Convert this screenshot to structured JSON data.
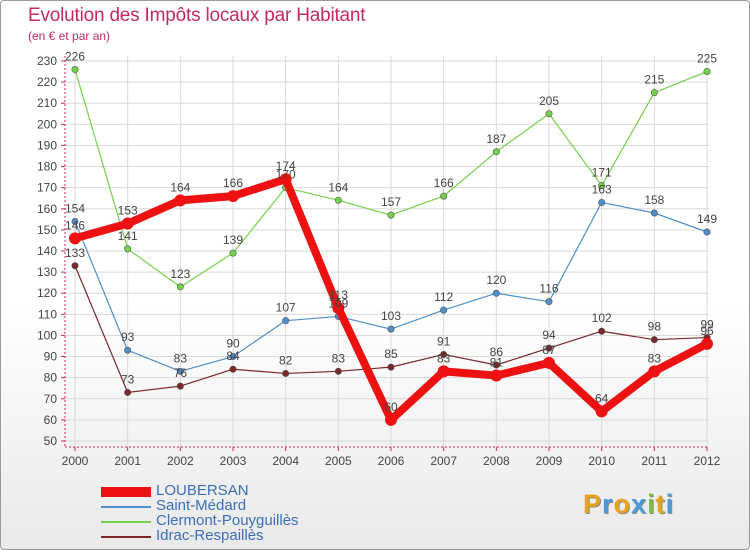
{
  "colors": {
    "title": "#c42b5e",
    "axis": "#c42b5e",
    "grid": "#d9d9d9",
    "label": "#444444",
    "legend_text": "#3b6fb6",
    "logo": [
      "#e9a21c",
      "#4a9ad8",
      "#e9a21c",
      "#4a9ad8",
      "#7cc13b",
      "#e9a21c",
      "#4a9ad8"
    ]
  },
  "logo": {
    "text": "Proxiti",
    "icon": "magnifier-x-icon"
  },
  "chart_data": {
    "type": "line",
    "title": "Evolution des Impôts locaux par Habitant",
    "subtitle": "(en € et par an)",
    "xlabel": "",
    "ylabel": "",
    "ylim": [
      50,
      230
    ],
    "ytick_step": 10,
    "grid": true,
    "legend": "bottom-left",
    "categories": [
      "2000",
      "2001",
      "2002",
      "2003",
      "2004",
      "2005",
      "2006",
      "2007",
      "2008",
      "2009",
      "2010",
      "2011",
      "2012"
    ],
    "series": [
      {
        "name": "LOUBERSAN",
        "color": "#ee1111",
        "values": [
          146,
          153,
          164,
          166,
          174,
          113,
          60,
          83,
          81,
          87,
          64,
          83,
          96
        ],
        "labels": [
          "146",
          "153",
          "164",
          "166",
          "174",
          "113",
          "60",
          "83",
          "81",
          "87",
          "64",
          "83",
          "96"
        ]
      },
      {
        "name": "Saint-Médard",
        "color": "#4f8fc8",
        "values": [
          154,
          93,
          83,
          90,
          107,
          109,
          103,
          112,
          120,
          116,
          163,
          158,
          149
        ],
        "labels": [
          "154",
          "93",
          "83",
          "90",
          "107",
          "109",
          "103",
          "112",
          "120",
          "116",
          "163",
          "158",
          "149"
        ]
      },
      {
        "name": "Clermont-Pouyguillès",
        "color": "#76d14a",
        "values": [
          226,
          141,
          123,
          139,
          170,
          164,
          157,
          166,
          187,
          205,
          171,
          215,
          225
        ],
        "labels": [
          "226",
          "141",
          "123",
          "139",
          "170",
          "164",
          "157",
          "166",
          "187",
          "205",
          "171",
          "215",
          "225"
        ]
      },
      {
        "name": "Idrac-Respaillès",
        "color": "#7a2727",
        "values": [
          133,
          73,
          76,
          84,
          82,
          83,
          85,
          91,
          86,
          94,
          102,
          98,
          99
        ],
        "labels": [
          "133",
          "73",
          "76",
          "84",
          "82",
          "83",
          "85",
          "91",
          "86",
          "94",
          "102",
          "98",
          "99"
        ]
      }
    ]
  }
}
